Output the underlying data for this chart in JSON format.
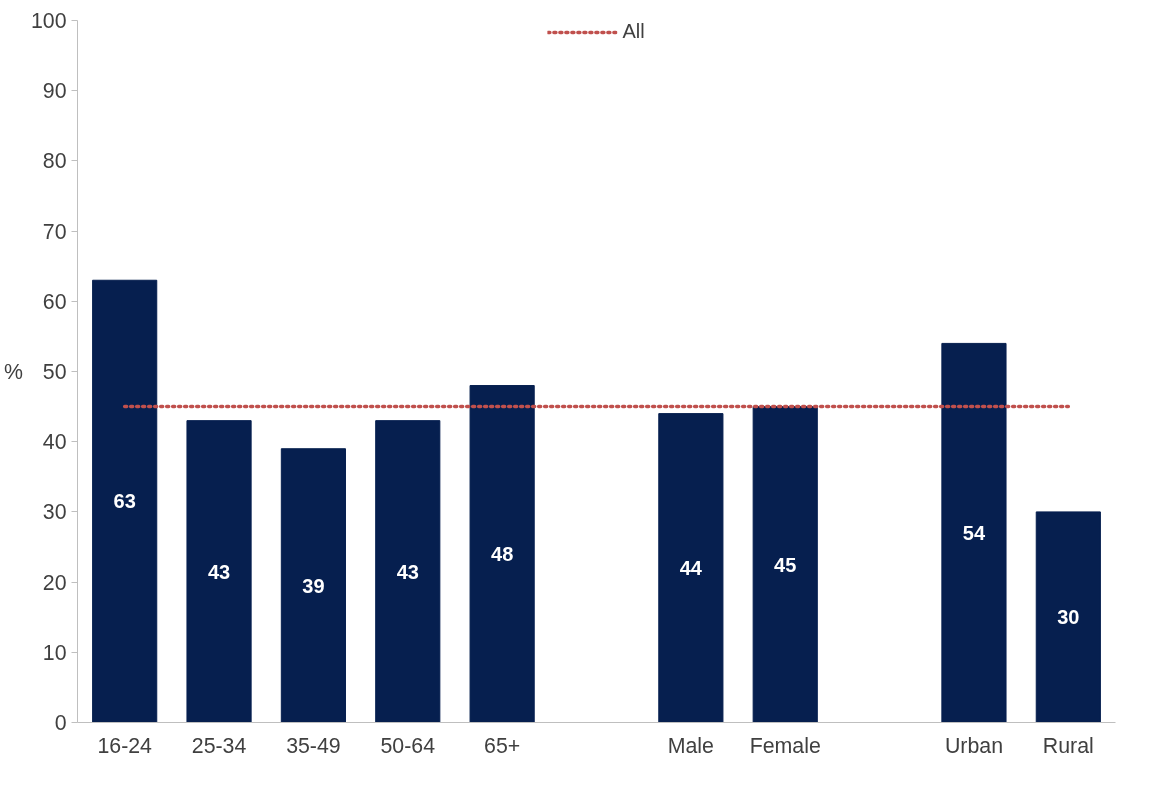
{
  "chart_data": {
    "type": "bar",
    "ylabel": "%",
    "categories": [
      "16-24",
      "25-34",
      "35-49",
      "50-64",
      "65+",
      null,
      "Male",
      "Female",
      null,
      "Urban",
      "Rural"
    ],
    "series": [
      {
        "color": "#061f4f",
        "values": [
          63,
          43,
          39,
          43,
          48,
          null,
          44,
          45,
          null,
          54,
          30
        ],
        "value_labels": [
          "63",
          "43",
          "39",
          "43",
          "48",
          null,
          "44",
          "45",
          null,
          "54",
          "30"
        ]
      },
      {
        "type": "line",
        "name": "All",
        "color": "#c0504d",
        "line_style": "dotted",
        "values": [
          45,
          45,
          45,
          45,
          45,
          45,
          45,
          45,
          45,
          45,
          45
        ]
      }
    ],
    "ylim": [
      0,
      100
    ],
    "yticks": [
      0,
      10,
      20,
      30,
      40,
      50,
      60,
      70,
      80,
      90,
      100
    ],
    "grid": false,
    "legend": "top"
  }
}
